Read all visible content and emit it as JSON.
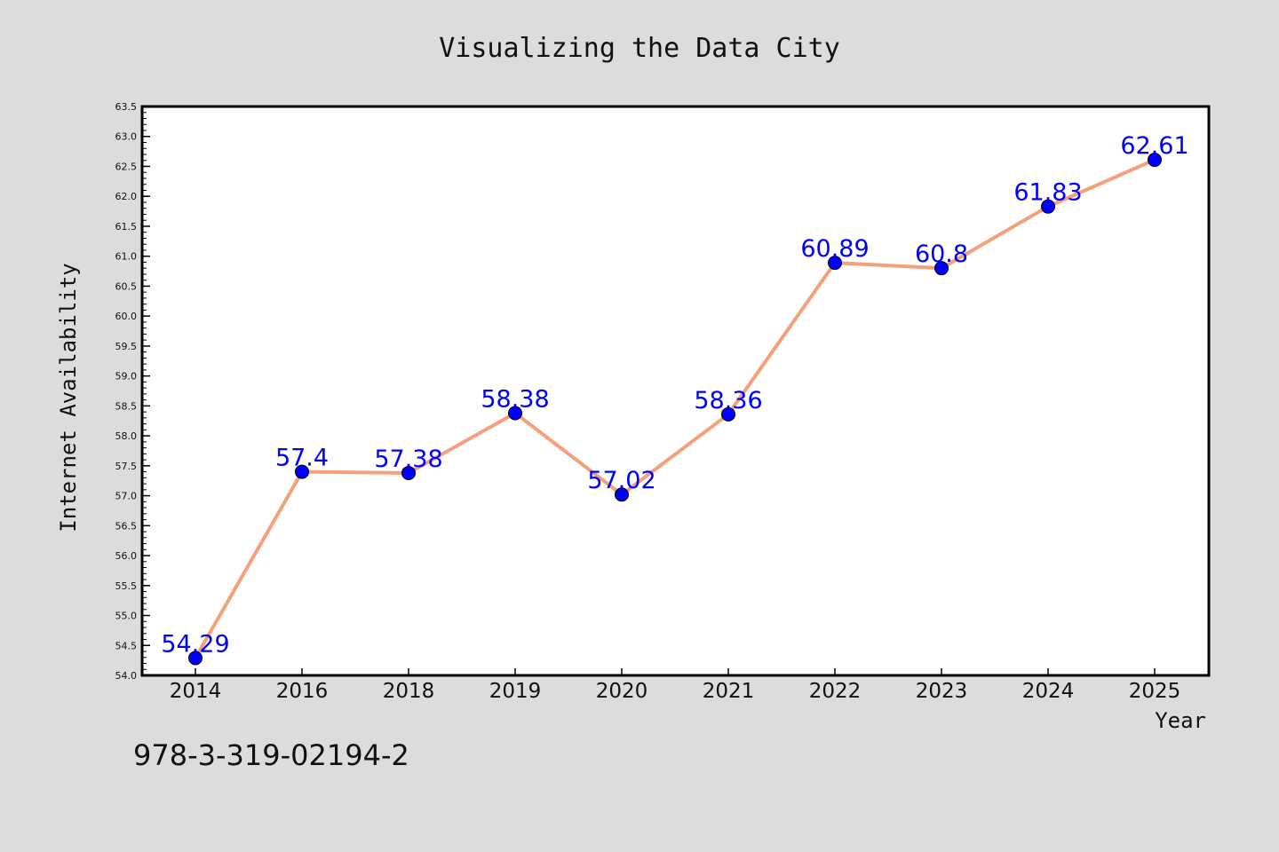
{
  "chart_data": {
    "type": "line",
    "title": "Visualizing the Data City",
    "xlabel": "Year",
    "ylabel": "Internet Availability",
    "categories": [
      "2014",
      "2016",
      "2018",
      "2019",
      "2020",
      "2021",
      "2022",
      "2023",
      "2024",
      "2025"
    ],
    "values": [
      54.29,
      57.4,
      57.38,
      58.38,
      57.02,
      58.36,
      60.89,
      60.8,
      61.83,
      62.61
    ],
    "value_labels": [
      "54.29",
      "57.4",
      "57.38",
      "58.38",
      "57.02",
      "58.36",
      "60.89",
      "60.8",
      "61.83",
      "62.61"
    ],
    "ylim": [
      54.0,
      63.5
    ],
    "yticks": [
      "54.0",
      "54.5",
      "55.0",
      "55.5",
      "56.0",
      "56.5",
      "57.0",
      "57.5",
      "58.0",
      "58.5",
      "59.0",
      "59.5",
      "60.0",
      "60.5",
      "61.0",
      "61.5",
      "62.0",
      "62.5",
      "63.0",
      "63.5"
    ],
    "grid": false,
    "legend": "none",
    "colors": {
      "line": "#f5a07a",
      "marker": "#0000ff",
      "value_label": "#0000ff",
      "plot_background": "#ffffff",
      "page_background": "#dcdcdc"
    }
  },
  "caption": "978-3-319-02194-2"
}
